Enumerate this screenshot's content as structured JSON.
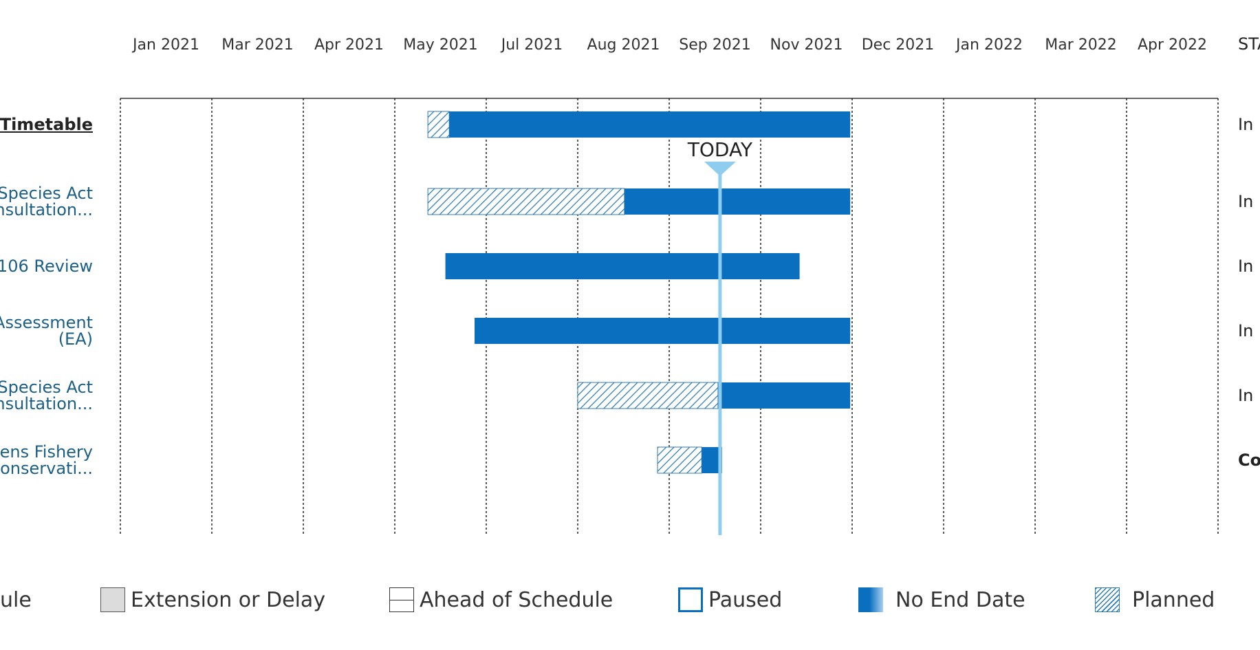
{
  "status_header": "STA",
  "months": [
    "Jan 2021",
    "Mar 2021",
    "Apr 2021",
    "May 2021",
    "Jul 2021",
    "Aug 2021",
    "Sep 2021",
    "Nov 2021",
    "Dec 2021",
    "Jan 2022",
    "Mar 2022",
    "Apr 2022"
  ],
  "today_label": "TODAY",
  "rows": [
    {
      "label_lines": [
        "t Timetable"
      ],
      "is_project": true,
      "status": "In"
    },
    {
      "label_lines": [
        "Species Act",
        "nsultation..."
      ],
      "is_project": false,
      "status": "In"
    },
    {
      "label_lines": [
        "106 Review"
      ],
      "is_project": false,
      "status": "In"
    },
    {
      "label_lines": [
        "Assessment",
        "(EA)"
      ],
      "is_project": false,
      "status": "In"
    },
    {
      "label_lines": [
        "Species Act",
        "nsultation..."
      ],
      "is_project": false,
      "status": "In"
    },
    {
      "label_lines": [
        "vens Fishery",
        "Conservati..."
      ],
      "is_project": false,
      "status": "Co",
      "status_bold": true
    }
  ],
  "legend": {
    "partial_label": "ule",
    "extension_label": "Extension or Delay",
    "ahead_label": "Ahead of Schedule",
    "paused_label": "Paused",
    "no_end_label": "No End Date",
    "planned_label": "Planned"
  },
  "colors": {
    "bar": "#0a6fbf",
    "hatch": "#2d7bb5",
    "today": "#8ecdf0",
    "label": "#1b5f86"
  },
  "chart_data": {
    "type": "gantt",
    "x_axis": {
      "ticks": [
        "Jan 2021",
        "Mar 2021",
        "Apr 2021",
        "May 2021",
        "Jul 2021",
        "Aug 2021",
        "Sep 2021",
        "Nov 2021",
        "Dec 2021",
        "Jan 2022",
        "Mar 2022",
        "Apr 2022"
      ],
      "range": [
        "2021-01",
        "2022-05"
      ]
    },
    "today": "2021-10-26",
    "tasks": [
      {
        "row": 0,
        "planned": [
          "2021-06-01",
          "2021-06-12"
        ],
        "actual": [
          "2021-06-12",
          "2021-12-31"
        ]
      },
      {
        "row": 1,
        "planned": [
          "2021-06-01",
          "2021-09-08"
        ],
        "actual": [
          "2021-09-08",
          "2021-12-31"
        ]
      },
      {
        "row": 2,
        "planned": null,
        "actual": [
          "2021-06-10",
          "2021-12-05"
        ]
      },
      {
        "row": 3,
        "planned": null,
        "actual": [
          "2021-06-25",
          "2021-12-31"
        ]
      },
      {
        "row": 4,
        "planned": [
          "2021-08-15",
          "2021-10-25"
        ],
        "actual": [
          "2021-10-25",
          "2021-12-31"
        ]
      },
      {
        "row": 5,
        "planned": [
          "2021-09-25",
          "2021-10-17"
        ],
        "actual": [
          "2021-10-17",
          "2021-10-27"
        ]
      }
    ],
    "grid": true,
    "legend_position": "bottom"
  }
}
